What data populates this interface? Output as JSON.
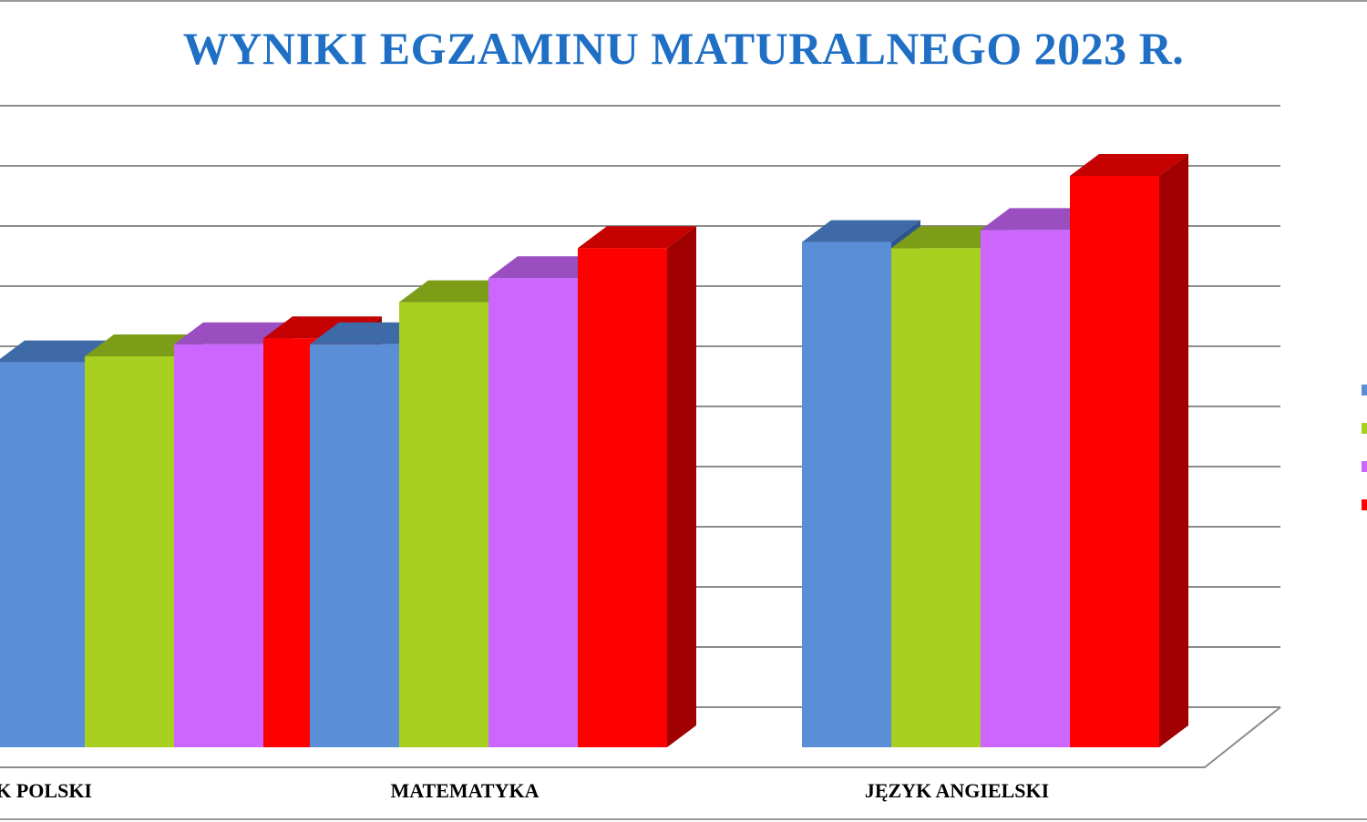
{
  "colors": {
    "title": "#1f6fc5",
    "gridline": "#8c8c8c",
    "series": [
      "#5a8ed6",
      "#a8d020",
      "#cc66ff",
      "#ff0000"
    ],
    "series_top": [
      "#3e6aa8",
      "#7d9c18",
      "#9a4ec0",
      "#c40000"
    ],
    "series_side": [
      "#2f5590",
      "#5f7a10",
      "#7a3aa0",
      "#a00000"
    ]
  },
  "chart_data": {
    "type": "bar",
    "title": "WYNIKI EGZAMINU MATURALNEGO 2023 R.",
    "categories": [
      "JĘZYK POLSKI",
      "MATEMATYKA",
      "JĘZYK ANGIELSKI"
    ],
    "series": [
      {
        "values": [
          64,
          67,
          84
        ]
      },
      {
        "values": [
          65,
          74,
          83
        ]
      },
      {
        "values": [
          67,
          78,
          86
        ]
      },
      {
        "values": [
          68,
          83,
          95
        ]
      }
    ],
    "ylim": [
      0,
      100
    ],
    "gridlines": true,
    "legend": "right"
  }
}
